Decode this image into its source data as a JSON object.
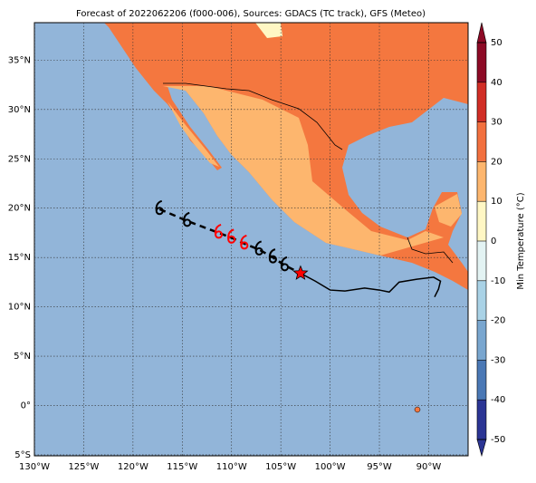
{
  "chart_data": {
    "type": "map",
    "title": "Forecast of 2022062206 (f000-006), Sources: GDACS (TC track), GFS (Meteo)",
    "xlim": [
      -130,
      -86
    ],
    "ylim": [
      -5.1,
      38.8
    ],
    "xticks": [
      {
        "value": -130,
        "label": "130°W"
      },
      {
        "value": -125,
        "label": "125°W"
      },
      {
        "value": -120,
        "label": "120°W"
      },
      {
        "value": -115,
        "label": "115°W"
      },
      {
        "value": -110,
        "label": "110°W"
      },
      {
        "value": -105,
        "label": "105°W"
      },
      {
        "value": -100,
        "label": "100°W"
      },
      {
        "value": -95,
        "label": "95°W"
      },
      {
        "value": -90,
        "label": "90°W"
      }
    ],
    "yticks": [
      {
        "value": -5,
        "label": "5°S"
      },
      {
        "value": 0,
        "label": "0°"
      },
      {
        "value": 5,
        "label": "5°N"
      },
      {
        "value": 10,
        "label": "10°N"
      },
      {
        "value": 15,
        "label": "15°N"
      },
      {
        "value": 20,
        "label": "20°N"
      },
      {
        "value": 25,
        "label": "25°N"
      },
      {
        "value": 30,
        "label": "30°N"
      },
      {
        "value": 35,
        "label": "35°N"
      }
    ],
    "grid": true,
    "tracks": [
      {
        "lon": [
          -117.3,
          -114.5,
          -111.3,
          -110.0,
          -108.7,
          -107.2,
          -105.8,
          -104.6,
          -103.0
        ],
        "lat": [
          19.9,
          18.7,
          17.5,
          17.0,
          16.4,
          15.8,
          15.0,
          14.2,
          13.4
        ],
        "dash": true
      },
      {
        "lon": [
          -103.0,
          -101.5,
          -100.0,
          -98.5,
          -96.5,
          -95.0,
          -94.0,
          -93.0,
          -91.2,
          -89.5,
          -88.8,
          -89.0,
          -89.4
        ],
        "lat": [
          13.4,
          12.6,
          11.7,
          11.6,
          11.9,
          11.7,
          11.5,
          12.5,
          12.8,
          13.0,
          12.6,
          11.8,
          11.0
        ],
        "dash": false
      }
    ],
    "markers": {
      "lon": [
        -117.3,
        -114.5,
        -111.3,
        -110.0,
        -108.7,
        -107.2,
        -105.8,
        -104.6
      ],
      "lat": [
        19.9,
        18.7,
        17.5,
        17.0,
        16.4,
        15.8,
        15.0,
        14.2
      ],
      "colors": [
        "#000000",
        "#000000",
        "#ff0000",
        "#ff0000",
        "#ff0000",
        "#000000",
        "#000000",
        "#000000"
      ]
    },
    "current_position": {
      "lon": -103.0,
      "lat": 13.4,
      "color": "#ff0000"
    },
    "colorbar": {
      "label": "Min Temperature (°C)",
      "ticks": [
        -50,
        -40,
        -30,
        -20,
        -10,
        0,
        10,
        20,
        30,
        40,
        50
      ],
      "colors": [
        "#2b3594",
        "#4a78b5",
        "#79a6cf",
        "#a9d2e6",
        "#e3f3f3",
        "#fff7c4",
        "#fdb66e",
        "#f2703f",
        "#d12e26",
        "#8d0a26"
      ]
    }
  }
}
